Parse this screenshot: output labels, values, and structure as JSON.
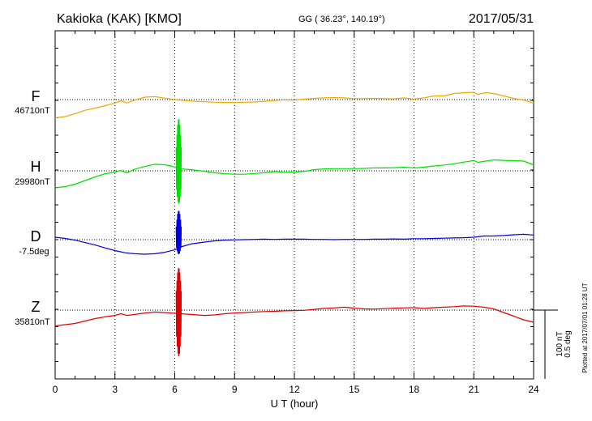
{
  "header": {
    "station": "Kakioka (KAK)  [KMO]",
    "coords": "GG ( 36.23°, 140.19°)",
    "date": "2017/05/31"
  },
  "scale_bar": {
    "label_nt": "100 nT",
    "label_deg": "0.5 deg"
  },
  "plotted_note": "Plotted at 2017/07/01 01:28 UT",
  "chart_data": {
    "type": "line",
    "xlabel": "U T (hour)",
    "xlim": [
      0,
      24
    ],
    "xticks": [
      "0",
      "3",
      "6",
      "9",
      "12",
      "15",
      "18",
      "21",
      "24"
    ],
    "grid": true,
    "series": [
      {
        "name": "F",
        "baseline_label": "46710nT",
        "color": "#f0a800",
        "x": [
          0,
          0.5,
          1,
          1.5,
          2,
          2.5,
          3,
          3.3,
          3.6,
          4,
          4.5,
          5,
          5.5,
          6,
          6.5,
          7,
          7.5,
          8,
          8.5,
          9,
          9.5,
          10,
          10.5,
          11,
          11.5,
          12,
          12.5,
          13,
          13.5,
          14,
          14.5,
          15,
          15.5,
          16,
          16.5,
          17,
          17.5,
          18,
          18.5,
          19,
          19.5,
          20,
          20.5,
          21,
          21.2,
          21.6,
          22,
          22.5,
          23,
          23.5,
          24
        ],
        "y": [
          -75,
          -70,
          -58,
          -44,
          -35,
          -25,
          -14,
          -5,
          -14,
          -2,
          10,
          12,
          6,
          0,
          -4,
          -7,
          -9,
          -11,
          -12,
          -12,
          -11,
          -10,
          -7,
          -4,
          -1,
          -2,
          2,
          5,
          7,
          8,
          7,
          4,
          4,
          5,
          4,
          3,
          7,
          2,
          7,
          15,
          15,
          25,
          28,
          30,
          22,
          28,
          25,
          15,
          5,
          -2,
          -15
        ]
      },
      {
        "name": "H",
        "baseline_label": "29980nT",
        "color": "#00e000",
        "x": [
          0,
          0.5,
          1,
          1.5,
          2,
          2.5,
          3,
          3.3,
          3.6,
          4,
          4.5,
          5,
          5.5,
          5.8,
          6.3,
          6.8,
          7.5,
          8,
          8.5,
          9,
          9.5,
          10,
          10.5,
          11,
          11.5,
          12,
          12.5,
          13,
          13.5,
          14,
          14.5,
          15,
          15.5,
          16,
          16.5,
          17,
          17.5,
          18,
          18.5,
          19,
          19.5,
          20,
          20.5,
          21,
          21.2,
          21.6,
          22,
          22.5,
          23,
          23.5,
          24
        ],
        "y": [
          -70,
          -65,
          -55,
          -40,
          -25,
          -12,
          -5,
          2,
          -8,
          7,
          18,
          27,
          25,
          20,
          8,
          5,
          -2,
          -8,
          -12,
          -14,
          -14,
          -11,
          -8,
          -3,
          -6,
          -5,
          -2,
          5,
          8,
          9,
          9,
          9,
          10,
          12,
          12,
          13,
          15,
          12,
          15,
          20,
          24,
          29,
          36,
          42,
          35,
          40,
          45,
          43,
          42,
          40,
          25
        ]
      },
      {
        "name": "D",
        "baseline_label": "-7.5deg",
        "color": "#0000e0",
        "x": [
          0,
          0.5,
          1,
          1.5,
          2,
          2.5,
          3,
          3.5,
          4,
          4.5,
          5,
          5.5,
          6,
          6.3,
          6.8,
          7.5,
          8,
          8.5,
          9,
          9.5,
          10,
          10.5,
          11,
          11.5,
          12,
          12.5,
          13,
          13.5,
          14,
          14.5,
          15,
          15.5,
          16,
          16.5,
          17,
          17.5,
          18,
          18.5,
          19,
          19.5,
          20,
          20.5,
          21,
          21.5,
          22,
          22.5,
          23,
          23.5,
          24
        ],
        "y": [
          10,
          5,
          -2,
          -12,
          -22,
          -34,
          -45,
          -54,
          -58,
          -60,
          -58,
          -52,
          -42,
          -30,
          -18,
          -10,
          -5,
          -2,
          -1,
          0,
          1,
          2,
          1,
          2,
          2,
          2,
          1,
          1,
          0,
          1,
          1,
          1,
          2,
          2,
          3,
          2,
          4,
          4,
          5,
          6,
          7,
          8,
          10,
          15,
          15,
          17,
          20,
          22,
          19
        ]
      },
      {
        "name": "Z",
        "baseline_label": "35810nT",
        "color": "#e00000",
        "x": [
          0,
          0.5,
          1,
          1.5,
          2,
          2.5,
          3,
          3.3,
          3.6,
          4,
          4.5,
          5,
          5.5,
          5.8,
          6.3,
          6.8,
          7.5,
          8,
          8.5,
          9,
          9.5,
          10,
          10.5,
          11,
          11.5,
          12,
          12.5,
          13,
          13.5,
          14,
          14.5,
          15,
          15.5,
          16,
          16.5,
          17,
          17.5,
          18,
          18.5,
          19,
          19.5,
          20,
          20.5,
          21,
          21.5,
          22,
          22.5,
          23,
          23.5,
          24
        ],
        "y": [
          -65,
          -60,
          -55,
          -45,
          -35,
          -28,
          -22,
          -15,
          -22,
          -18,
          -12,
          -8,
          -10,
          -12,
          -15,
          -18,
          -22,
          -20,
          -15,
          -12,
          -10,
          -8,
          -6,
          -5,
          -3,
          -2,
          -1,
          3,
          7,
          9,
          12,
          8,
          5,
          4,
          6,
          8,
          9,
          10,
          7,
          10,
          12,
          14,
          17,
          16,
          12,
          5,
          -10,
          -25,
          -40,
          -50
        ]
      }
    ],
    "spikes": [
      {
        "series": "H",
        "x": 6.2,
        "up": 215,
        "down": 135
      },
      {
        "series": "D",
        "x": 6.2,
        "up": 120,
        "down": 60
      },
      {
        "series": "Z",
        "x": 6.2,
        "up": 175,
        "down": 190
      }
    ]
  }
}
